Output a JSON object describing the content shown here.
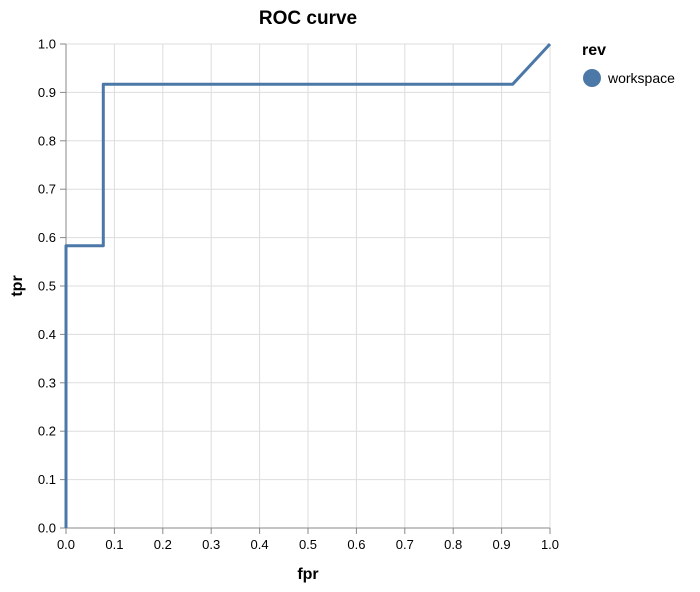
{
  "chart_data": {
    "type": "line",
    "title": "ROC curve",
    "xlabel": "fpr",
    "ylabel": "tpr",
    "xlim": [
      0,
      1
    ],
    "ylim": [
      0,
      1
    ],
    "x_ticks": [
      "0.0",
      "0.1",
      "0.2",
      "0.3",
      "0.4",
      "0.5",
      "0.6",
      "0.7",
      "0.8",
      "0.9",
      "1.0"
    ],
    "y_ticks": [
      "0.0",
      "0.1",
      "0.2",
      "0.3",
      "0.4",
      "0.5",
      "0.6",
      "0.7",
      "0.8",
      "0.9",
      "1.0"
    ],
    "grid": true,
    "legend": {
      "title": "rev",
      "placement": "top-right",
      "entries": [
        "workspace"
      ]
    },
    "series": [
      {
        "name": "workspace",
        "color": "#4c78a8",
        "x": [
          0.0,
          0.0,
          0.077,
          0.077,
          0.923,
          1.0
        ],
        "y": [
          0.0,
          0.583,
          0.583,
          0.917,
          0.917,
          1.0
        ]
      }
    ]
  }
}
